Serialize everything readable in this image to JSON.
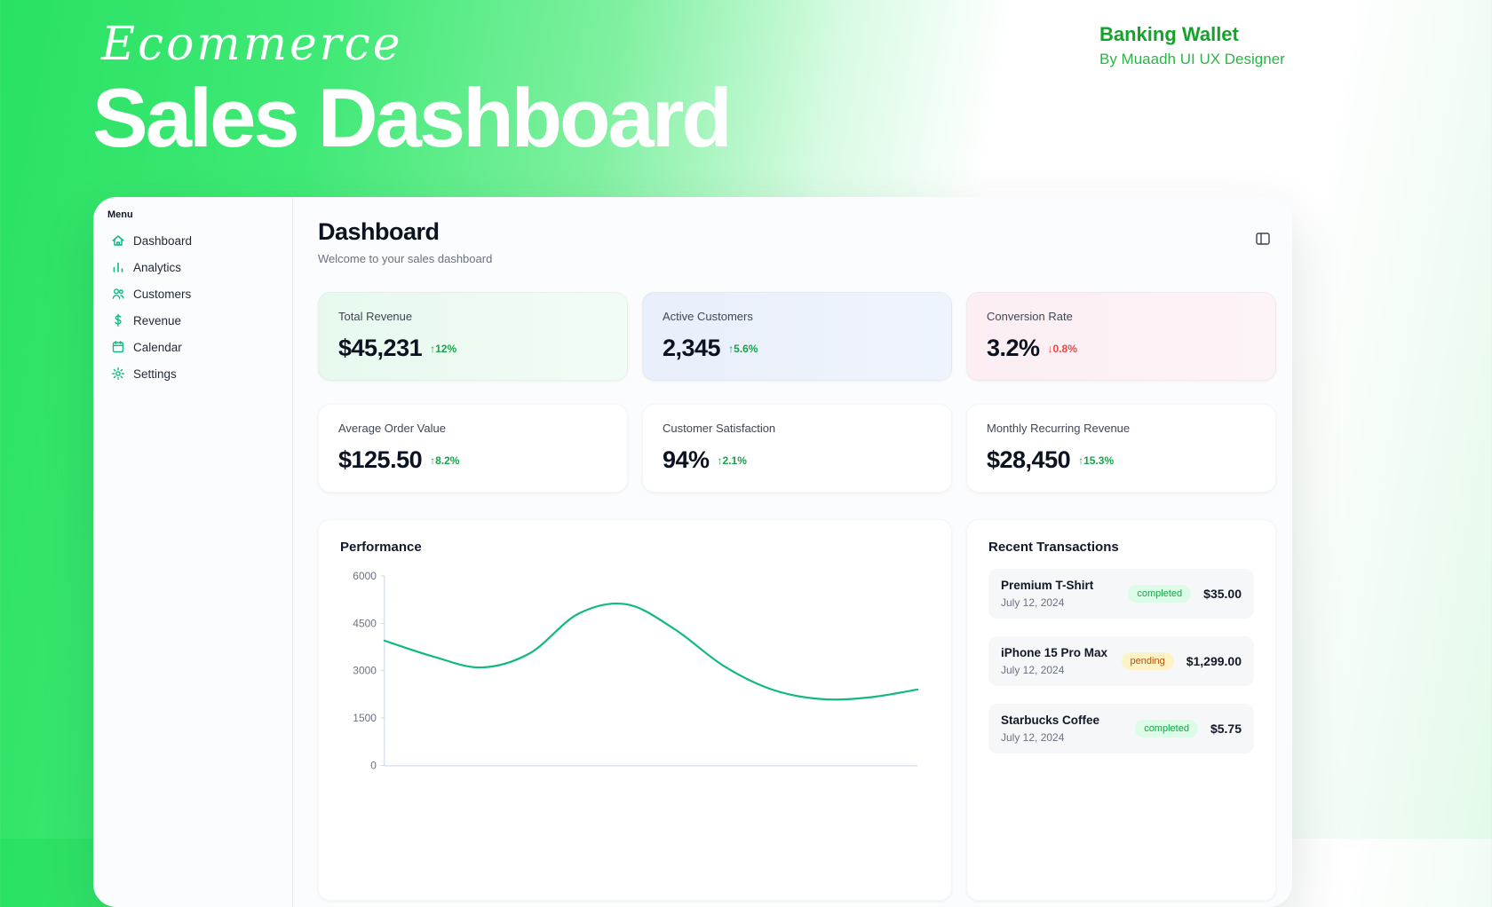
{
  "hero": {
    "script_title": "Ecommerce",
    "main_title": "Sales Dashboard"
  },
  "brand": {
    "name": "Banking Wallet",
    "byline": "By Muaadh UI UX Designer"
  },
  "sidebar": {
    "menu_label": "Menu",
    "items": [
      {
        "label": "Dashboard",
        "icon": "home-icon"
      },
      {
        "label": "Analytics",
        "icon": "bar-chart-icon"
      },
      {
        "label": "Customers",
        "icon": "users-icon"
      },
      {
        "label": "Revenue",
        "icon": "dollar-icon"
      },
      {
        "label": "Calendar",
        "icon": "calendar-icon"
      },
      {
        "label": "Settings",
        "icon": "gear-icon"
      }
    ]
  },
  "header": {
    "title": "Dashboard",
    "subtitle": "Welcome to your sales dashboard"
  },
  "stats": [
    {
      "label": "Total Revenue",
      "value": "$45,231",
      "delta": "↑12%",
      "trend": "up",
      "tint": "green"
    },
    {
      "label": "Active Customers",
      "value": "2,345",
      "delta": "↑5.6%",
      "trend": "up",
      "tint": "blue"
    },
    {
      "label": "Conversion Rate",
      "value": "3.2%",
      "delta": "↓0.8%",
      "trend": "down",
      "tint": "pink"
    },
    {
      "label": "Average Order Value",
      "value": "$125.50",
      "delta": "↑8.2%",
      "trend": "up",
      "tint": "white"
    },
    {
      "label": "Customer Satisfaction",
      "value": "94%",
      "delta": "↑2.1%",
      "trend": "up",
      "tint": "white"
    },
    {
      "label": "Monthly Recurring Revenue",
      "value": "$28,450",
      "delta": "↑15.3%",
      "trend": "up",
      "tint": "white"
    }
  ],
  "performance": {
    "title": "Performance"
  },
  "chart_data": {
    "type": "line",
    "title": "Performance",
    "values": [
      3950,
      3450,
      3100,
      3550,
      4800,
      5100,
      4300,
      3150,
      2400,
      2100,
      2150,
      2400
    ],
    "ylim": [
      0,
      6000
    ],
    "yticks": [
      0,
      1500,
      3000,
      4500,
      6000
    ],
    "x_tick_labels_visible": false,
    "line_color": "#10b981",
    "axis_color": "#cbd5e1",
    "tick_label_color": "#6b7280",
    "grid": false,
    "legend": false
  },
  "transactions": {
    "title": "Recent Transactions",
    "items": [
      {
        "name": "Premium T-Shirt",
        "date": "July 12, 2024",
        "status": "completed",
        "amount": "$35.00"
      },
      {
        "name": "iPhone 15 Pro Max",
        "date": "July 12, 2024",
        "status": "pending",
        "amount": "$1,299.00"
      },
      {
        "name": "Starbucks Coffee",
        "date": "July 12, 2024",
        "status": "completed",
        "amount": "$5.75"
      }
    ]
  },
  "colors": {
    "accent_green": "#10b981",
    "delta_up": "#16a34a",
    "delta_down": "#ef4444",
    "brand_green": "#13a32a",
    "badge_completed_bg": "#dcfce7",
    "badge_pending_bg": "#fef3c7"
  }
}
